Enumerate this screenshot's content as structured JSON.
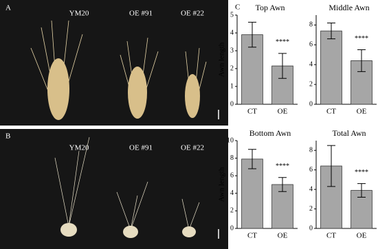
{
  "panels": {
    "a": {
      "label": "A",
      "samples": [
        "YM20",
        "OE #91",
        "OE #22"
      ]
    },
    "b": {
      "label": "B",
      "samples": [
        "YM20",
        "OE #91",
        "OE #22"
      ]
    },
    "c": {
      "label": "C"
    }
  },
  "chart_data": [
    {
      "type": "bar",
      "title": "Top Awn",
      "y_label": "Awn length",
      "categories": [
        "CT",
        "OE"
      ],
      "values": [
        3.9,
        2.15
      ],
      "errors": [
        0.7,
        0.7
      ],
      "annotations": [
        "****"
      ],
      "color": "#a6a6a6",
      "ylim": [
        0,
        5
      ],
      "yticks": [
        0,
        1,
        2,
        3,
        4,
        5
      ]
    },
    {
      "type": "bar",
      "title": "Middle Awn",
      "categories": [
        "CT",
        "OE"
      ],
      "values": [
        7.4,
        4.4
      ],
      "errors": [
        0.8,
        1.1
      ],
      "annotations": [
        "****"
      ],
      "color": "#a6a6a6",
      "ylim": [
        0,
        9
      ],
      "yticks": [
        0,
        2,
        4,
        6,
        8
      ]
    },
    {
      "type": "bar",
      "title": "Bottom Awn",
      "y_label": "Awn length",
      "categories": [
        "CT",
        "OE"
      ],
      "values": [
        7.9,
        5.0
      ],
      "errors": [
        1.1,
        0.8
      ],
      "annotations": [
        "****"
      ],
      "color": "#a6a6a6",
      "ylim": [
        0,
        10
      ],
      "yticks": [
        0,
        2,
        4,
        6,
        8,
        10
      ]
    },
    {
      "type": "bar",
      "title": "Total Awn",
      "categories": [
        "CT",
        "OE"
      ],
      "values": [
        6.4,
        3.9
      ],
      "errors": [
        2.1,
        0.7
      ],
      "annotations": [
        "****"
      ],
      "color": "#a6a6a6",
      "ylim": [
        0,
        9
      ],
      "yticks": [
        0,
        2,
        4,
        6,
        8
      ]
    }
  ]
}
